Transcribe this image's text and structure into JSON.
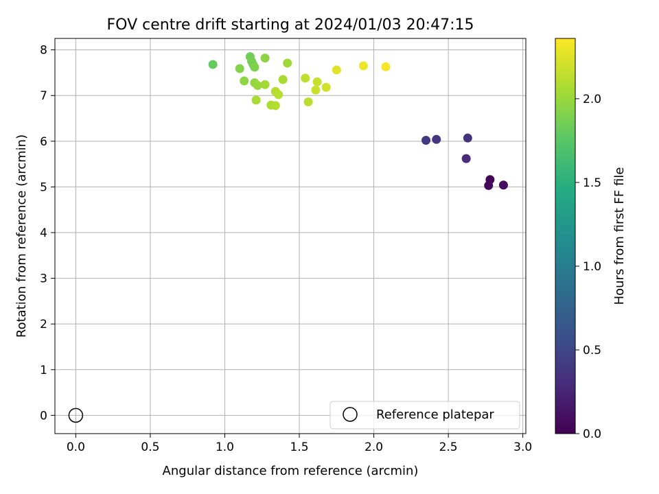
{
  "chart_data": {
    "type": "scatter",
    "title": "FOV centre drift starting at 2024/01/03 20:47:15",
    "xlabel": "Angular distance from reference (arcmin)",
    "ylabel": "Rotation from reference (arcmin)",
    "xlim": [
      -0.14,
      3.02
    ],
    "ylim": [
      -0.4,
      8.25
    ],
    "xticks": [
      "0.0",
      "0.5",
      "1.0",
      "1.5",
      "2.0",
      "2.5",
      "3.0"
    ],
    "yticks": [
      "0",
      "1",
      "2",
      "3",
      "4",
      "5",
      "6",
      "7",
      "8"
    ],
    "grid": true,
    "legend": {
      "location": "lower-right",
      "entries": [
        "Reference platepar"
      ]
    },
    "reference_point": {
      "x": 0.0,
      "y": 0.0,
      "marker": "open-circle",
      "label": "Reference platepar"
    },
    "colorbar": {
      "label": "Hours from first FF file",
      "colormap": "viridis",
      "range": [
        0.0,
        2.36
      ],
      "ticks": [
        "0.0",
        "0.5",
        "1.0",
        "1.5",
        "2.0"
      ]
    },
    "series": [
      {
        "points": [
          {
            "x": 2.78,
            "y": 5.16,
            "h": 0.03
          },
          {
            "x": 2.77,
            "y": 5.03,
            "h": 0.05
          },
          {
            "x": 2.87,
            "y": 5.04,
            "h": 0.07
          },
          {
            "x": 2.62,
            "y": 5.62,
            "h": 0.3
          },
          {
            "x": 2.63,
            "y": 6.07,
            "h": 0.34
          },
          {
            "x": 2.42,
            "y": 6.04,
            "h": 0.38
          },
          {
            "x": 2.35,
            "y": 6.02,
            "h": 0.4
          },
          {
            "x": 0.92,
            "y": 7.68,
            "h": 1.8
          },
          {
            "x": 1.17,
            "y": 7.85,
            "h": 1.84
          },
          {
            "x": 1.18,
            "y": 7.75,
            "h": 1.86
          },
          {
            "x": 1.19,
            "y": 7.68,
            "h": 1.88
          },
          {
            "x": 1.2,
            "y": 7.62,
            "h": 1.9
          },
          {
            "x": 1.1,
            "y": 7.59,
            "h": 1.92
          },
          {
            "x": 1.27,
            "y": 7.82,
            "h": 1.95
          },
          {
            "x": 1.13,
            "y": 7.32,
            "h": 1.96
          },
          {
            "x": 1.2,
            "y": 7.28,
            "h": 1.98
          },
          {
            "x": 1.22,
            "y": 7.22,
            "h": 2.0
          },
          {
            "x": 1.42,
            "y": 7.71,
            "h": 2.02
          },
          {
            "x": 1.27,
            "y": 7.24,
            "h": 2.04
          },
          {
            "x": 1.39,
            "y": 7.35,
            "h": 2.05
          },
          {
            "x": 1.21,
            "y": 6.9,
            "h": 2.06
          },
          {
            "x": 1.31,
            "y": 6.79,
            "h": 2.08
          },
          {
            "x": 1.34,
            "y": 6.78,
            "h": 2.09
          },
          {
            "x": 1.34,
            "y": 7.09,
            "h": 2.1
          },
          {
            "x": 1.36,
            "y": 7.02,
            "h": 2.11
          },
          {
            "x": 1.56,
            "y": 6.86,
            "h": 2.12
          },
          {
            "x": 1.54,
            "y": 7.38,
            "h": 2.14
          },
          {
            "x": 1.62,
            "y": 7.3,
            "h": 2.16
          },
          {
            "x": 1.61,
            "y": 7.12,
            "h": 2.18
          },
          {
            "x": 1.68,
            "y": 7.18,
            "h": 2.2
          },
          {
            "x": 1.75,
            "y": 7.56,
            "h": 2.26
          },
          {
            "x": 1.93,
            "y": 7.65,
            "h": 2.3
          },
          {
            "x": 2.08,
            "y": 7.63,
            "h": 2.34
          }
        ]
      }
    ]
  }
}
